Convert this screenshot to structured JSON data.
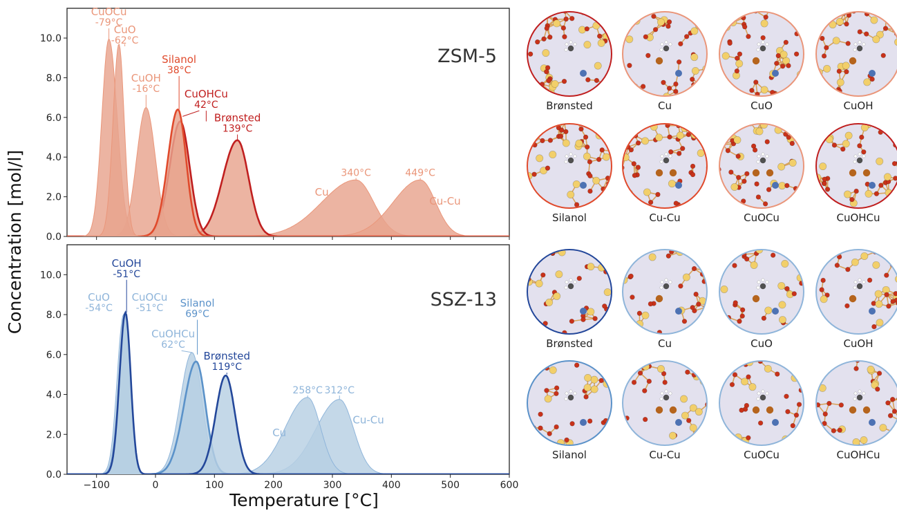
{
  "ylabel": "Concentration [mol/l]",
  "xlabel": "Temperature [°C]",
  "colors": {
    "zsm_light": "#ea967a",
    "zsm_mid": "#e04a2c",
    "zsm_dark": "#c01f1f",
    "zsm_fill": "#e8a48d",
    "ssz_light": "#8fb5da",
    "ssz_mid": "#5b92c9",
    "ssz_dark": "#23479a",
    "ssz_fill": "#b7cfe3",
    "circle_bg": "#e3e1ee",
    "o_atom": "#c8321a",
    "si_atom": "#f2cf6a",
    "cu_atom": "#b5641d",
    "al_atom": "#4d72b3",
    "c_atom": "#505050",
    "h_atom": "#ffffff"
  },
  "chart_data": [
    {
      "type": "area",
      "framework": "ZSM-5",
      "xlim": [
        -150,
        600
      ],
      "ylim": [
        0,
        11.5
      ],
      "yticks": [
        0.0,
        2.0,
        4.0,
        6.0,
        8.0,
        10.0
      ],
      "ytick_labels": [
        "0.0",
        "2.0",
        "4.0",
        "6.0",
        "8.0",
        "10.0"
      ],
      "series": [
        {
          "name": "CuOCu",
          "peak_x": -79,
          "peak_y": 9.95,
          "labels": [
            "CuOCu",
            "-79°C"
          ],
          "tone": "light"
        },
        {
          "name": "CuO",
          "peak_x": -62,
          "peak_y": 9.7,
          "labels": [
            "CuO",
            "-62°C"
          ],
          "tone": "light"
        },
        {
          "name": "CuOH",
          "peak_x": -16,
          "peak_y": 6.5,
          "labels": [
            "CuOH",
            "-16°C"
          ],
          "tone": "light"
        },
        {
          "name": "Silanol",
          "peak_x": 38,
          "peak_y": 6.4,
          "labels": [
            "Silanol",
            "38°C"
          ],
          "tone": "mid"
        },
        {
          "name": "CuOHCu",
          "peak_x": 42,
          "peak_y": 5.8,
          "labels": [
            "CuOHCu",
            "42°C"
          ],
          "tone": "dark"
        },
        {
          "name": "Brønsted",
          "peak_x": 139,
          "peak_y": 4.85,
          "labels": [
            "Brønsted",
            "139°C"
          ],
          "tone": "dark"
        },
        {
          "name": "Cu",
          "peak_x": 340,
          "peak_y": 2.85,
          "labels": [
            "Cu",
            "340°C"
          ],
          "tone": "light"
        },
        {
          "name": "Cu-Cu",
          "peak_x": 449,
          "peak_y": 2.85,
          "labels": [
            "Cu-Cu",
            "449°C"
          ],
          "tone": "light"
        }
      ]
    },
    {
      "type": "area",
      "framework": "SSZ-13",
      "xlim": [
        -150,
        600
      ],
      "ylim": [
        0,
        11.5
      ],
      "xticks": [
        -100,
        0,
        100,
        200,
        300,
        400,
        500,
        600
      ],
      "xtick_labels": [
        "−100",
        "0",
        "100",
        "200",
        "300",
        "400",
        "500",
        "600"
      ],
      "yticks": [
        0.0,
        2.0,
        4.0,
        6.0,
        8.0,
        10.0
      ],
      "ytick_labels": [
        "0.0",
        "2.0",
        "4.0",
        "6.0",
        "8.0",
        "10.0"
      ],
      "series": [
        {
          "name": "CuOH",
          "peak_x": -51,
          "peak_y": 8.1,
          "labels": [
            "CuOH",
            "-51°C"
          ],
          "tone": "dark"
        },
        {
          "name": "CuO",
          "peak_x": -54,
          "peak_y": 8.0,
          "labels": [
            "CuO",
            "-54°C"
          ],
          "tone": "light"
        },
        {
          "name": "CuOCu",
          "peak_x": -51,
          "peak_y": 8.0,
          "labels": [
            "CuOCu",
            "-51°C"
          ],
          "tone": "light"
        },
        {
          "name": "CuOHCu",
          "peak_x": 62,
          "peak_y": 6.1,
          "labels": [
            "CuOHCu",
            "62°C"
          ],
          "tone": "light"
        },
        {
          "name": "Silanol",
          "peak_x": 69,
          "peak_y": 5.65,
          "labels": [
            "Silanol",
            "69°C"
          ],
          "tone": "mid"
        },
        {
          "name": "Brønsted",
          "peak_x": 119,
          "peak_y": 4.95,
          "labels": [
            "Brønsted",
            "119°C"
          ],
          "tone": "dark"
        },
        {
          "name": "Cu",
          "peak_x": 258,
          "peak_y": 3.85,
          "labels": [
            "Cu",
            "258°C"
          ],
          "tone": "light"
        },
        {
          "name": "Cu-Cu",
          "peak_x": 312,
          "peak_y": 3.75,
          "labels": [
            "Cu-Cu",
            "312°C"
          ],
          "tone": "light"
        }
      ]
    }
  ],
  "gallery": {
    "zsm5": {
      "row1": [
        "Brønsted",
        "Cu",
        "CuO",
        "CuOH"
      ],
      "row2": [
        "Silanol",
        "Cu-Cu",
        "CuOCu",
        "CuOHCu"
      ]
    },
    "ssz13": {
      "row1": [
        "Brønsted",
        "Cu",
        "CuO",
        "CuOH"
      ],
      "row2": [
        "Silanol",
        "Cu-Cu",
        "CuOCu",
        "CuOHCu"
      ]
    }
  }
}
